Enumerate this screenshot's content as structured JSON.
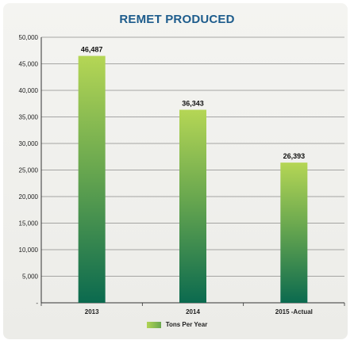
{
  "chart_data": {
    "type": "bar",
    "title": "REMET PRODUCED",
    "categories": [
      "2013",
      "2014",
      "2015 -Actual"
    ],
    "series": [
      {
        "name": "Tons Per Year",
        "values": [
          46487,
          36343,
          26393
        ]
      }
    ],
    "data_labels": [
      "46,487",
      "36,343",
      "26,393"
    ],
    "y_tick_labels": [
      "-",
      "5,000",
      "10,000",
      "15,000",
      "20,000",
      "25,000",
      "30,000",
      "35,000",
      "40,000",
      "45,000",
      "50,000"
    ],
    "ylim": [
      0,
      50000
    ],
    "ytick_step": 5000,
    "xlabel": "",
    "ylabel": "",
    "grid": true,
    "legend_position": "bottom-center",
    "colors": {
      "bar_top": "#b5d655",
      "bar_bottom": "#0b6a4f",
      "title": "#1d5c8c"
    }
  }
}
